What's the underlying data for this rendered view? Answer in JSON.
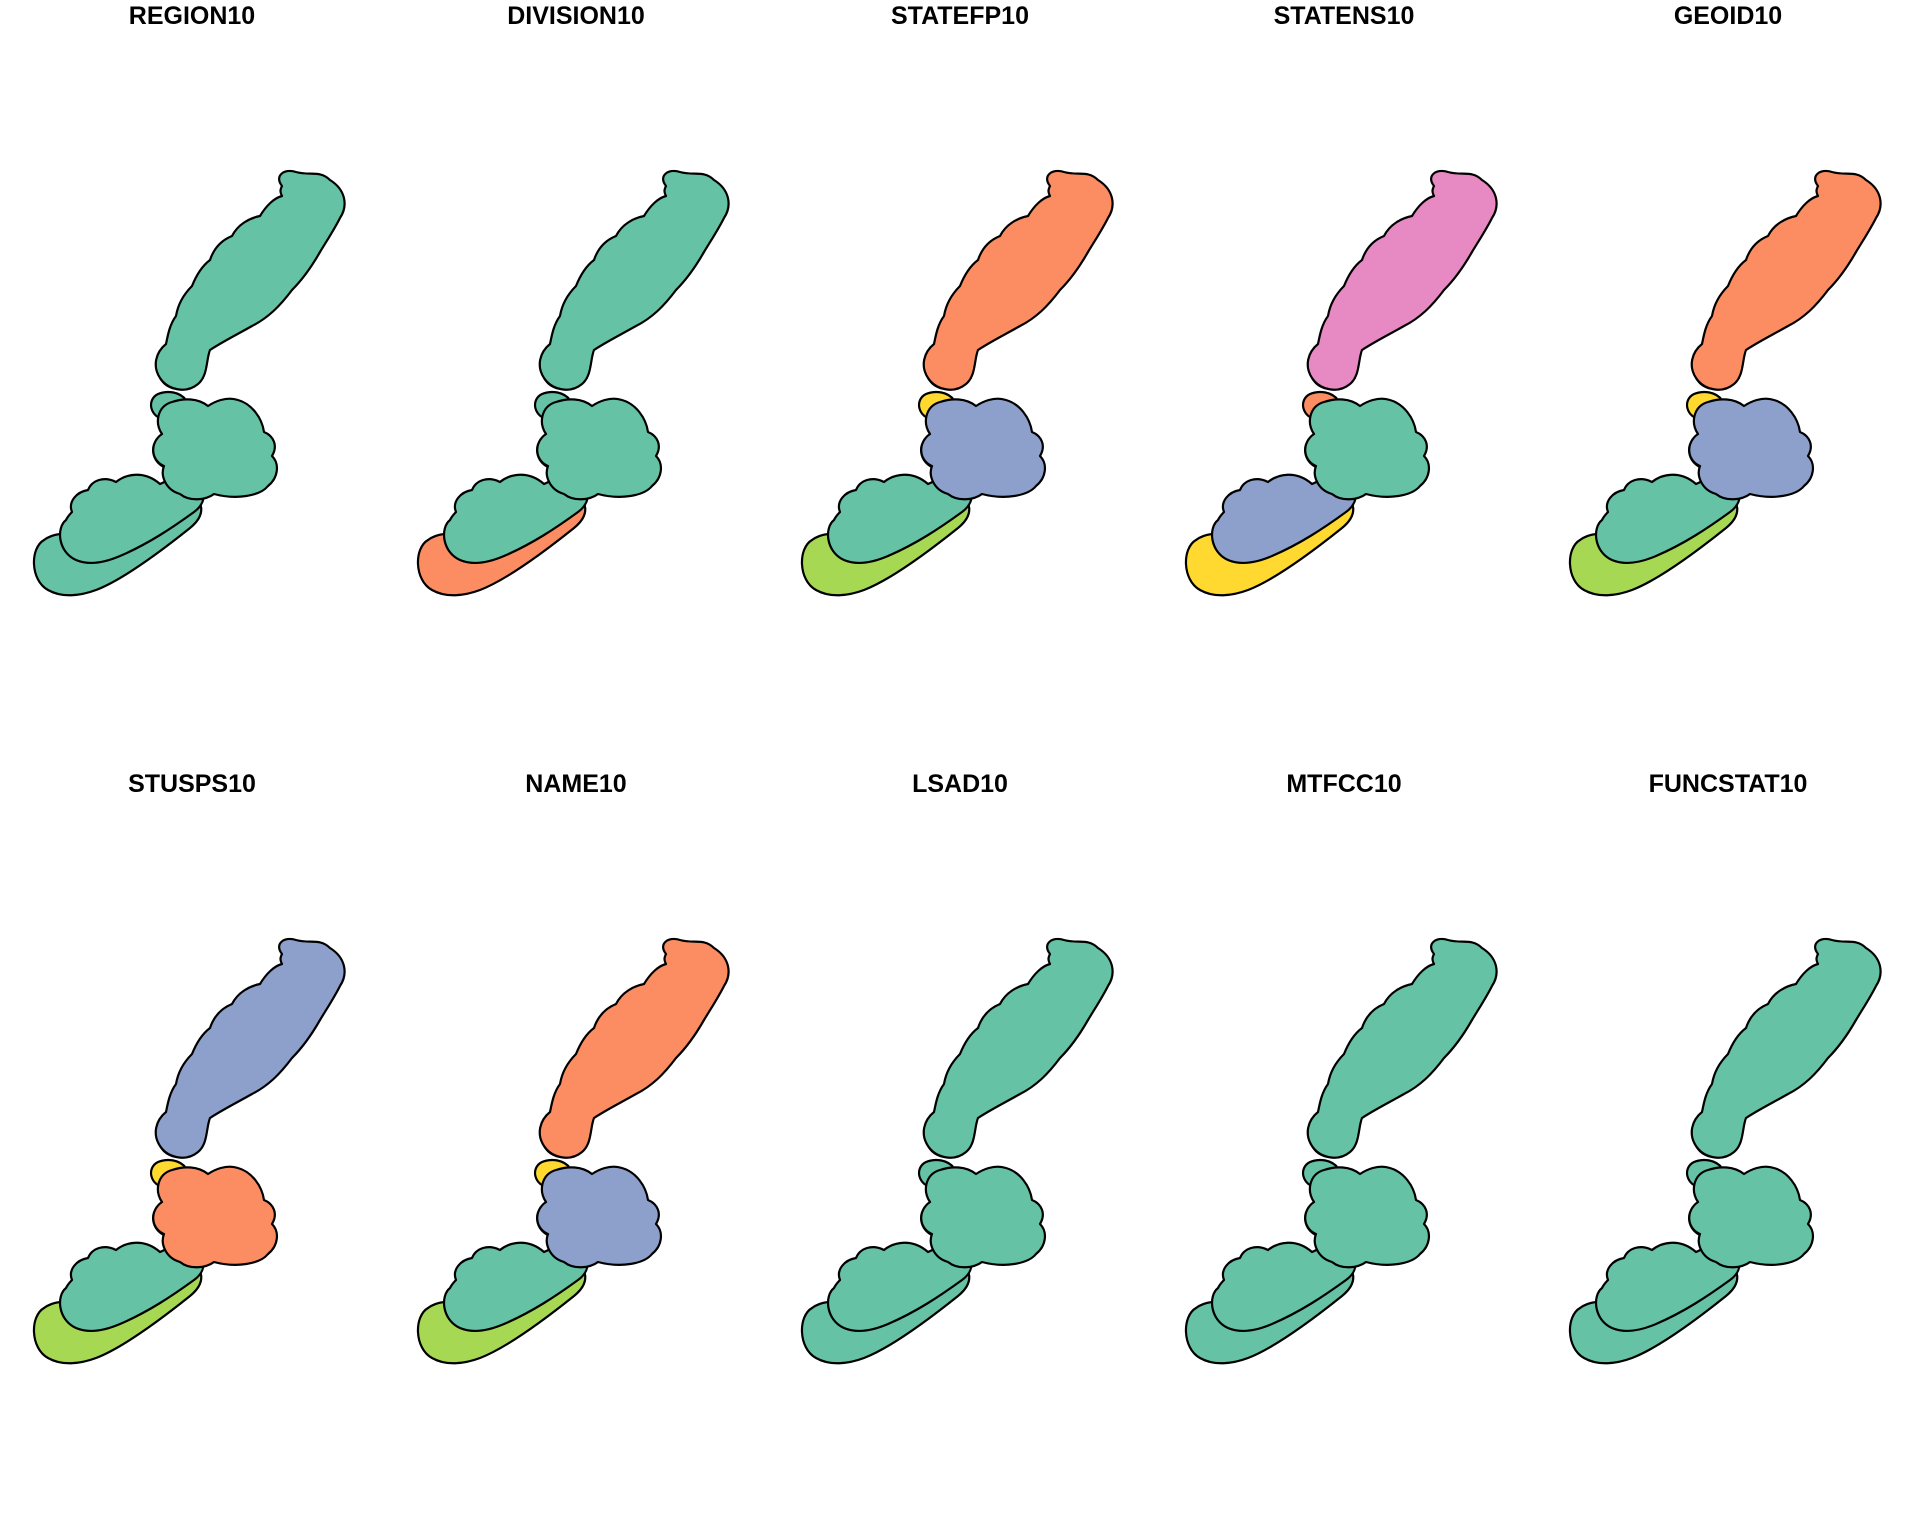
{
  "palette": {
    "teal": "#66c2a5",
    "orange": "#fc8d62",
    "blue": "#8da0cb",
    "pink": "#e78ac3",
    "green": "#a6d854",
    "yellow": "#ffd92f"
  },
  "panels": [
    {
      "title": "REGION10",
      "fills": {
        "north": "teal",
        "north_under": "teal",
        "center_under1": "teal",
        "center_under2": "teal",
        "center": "teal",
        "sw_under": "teal",
        "sw": "teal"
      }
    },
    {
      "title": "DIVISION10",
      "fills": {
        "north": "teal",
        "north_under": "teal",
        "center_under1": "teal",
        "center_under2": "teal",
        "center": "teal",
        "sw_under": "orange",
        "sw": "teal"
      }
    },
    {
      "title": "STATEFP10",
      "fills": {
        "north": "orange",
        "north_under": "pink",
        "center_under1": "yellow",
        "center_under2": "yellow",
        "center": "blue",
        "sw_under": "green",
        "sw": "teal"
      }
    },
    {
      "title": "STATENS10",
      "fills": {
        "north": "pink",
        "north_under": "green",
        "center_under1": "orange",
        "center_under2": "orange",
        "center": "teal",
        "sw_under": "yellow",
        "sw": "blue"
      }
    },
    {
      "title": "GEOID10",
      "fills": {
        "north": "orange",
        "north_under": "pink",
        "center_under1": "yellow",
        "center_under2": "yellow",
        "center": "blue",
        "sw_under": "green",
        "sw": "teal"
      }
    },
    {
      "title": "STUSPS10",
      "fills": {
        "north": "blue",
        "north_under": "pink",
        "center_under1": "yellow",
        "center_under2": "yellow",
        "center": "orange",
        "sw_under": "green",
        "sw": "teal"
      }
    },
    {
      "title": "NAME10",
      "fills": {
        "north": "orange",
        "north_under": "pink",
        "center_under1": "yellow",
        "center_under2": "yellow",
        "center": "blue",
        "sw_under": "green",
        "sw": "teal"
      }
    },
    {
      "title": "LSAD10",
      "fills": {
        "north": "teal",
        "north_under": "teal",
        "center_under1": "teal",
        "center_under2": "teal",
        "center": "teal",
        "sw_under": "teal",
        "sw": "teal"
      }
    },
    {
      "title": "MTFCC10",
      "fills": {
        "north": "teal",
        "north_under": "teal",
        "center_under1": "teal",
        "center_under2": "teal",
        "center": "teal",
        "sw_under": "teal",
        "sw": "teal"
      }
    },
    {
      "title": "FUNCSTAT10",
      "fills": {
        "north": "teal",
        "north_under": "teal",
        "center_under1": "teal",
        "center_under2": "teal",
        "center": "teal",
        "sw_under": "teal",
        "sw": "teal"
      }
    }
  ]
}
